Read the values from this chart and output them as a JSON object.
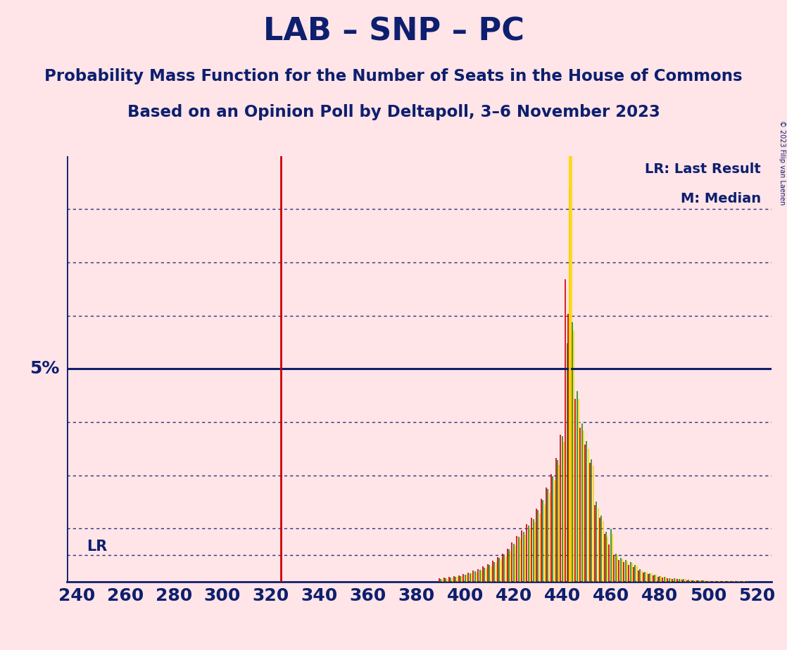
{
  "title": "LAB – SNP – PC",
  "subtitle1": "Probability Mass Function for the Number of Seats in the House of Commons",
  "subtitle2": "Based on an Opinion Poll by Deltapoll, 3–6 November 2023",
  "copyright": "© 2023 Filip van Laenen",
  "background_color": "#FFE4E8",
  "text_color": "#0D1F6E",
  "title_fontsize": 32,
  "subtitle_fontsize": 16.5,
  "lr_label": "LR",
  "lr_value": 324,
  "median_value": 443,
  "five_pct_line": 5.0,
  "xmin": 236,
  "xmax": 526,
  "ymin": 0,
  "ymax": 10.0,
  "dotted_line_levels": [
    1.25,
    2.5,
    3.75,
    6.25,
    7.5,
    8.75
  ],
  "lr_dotted_level": 0.625,
  "xticks": [
    240,
    260,
    280,
    300,
    320,
    340,
    360,
    380,
    400,
    420,
    440,
    460,
    480,
    500,
    520
  ],
  "red_color": "#CC0000",
  "green_color": "#228B22",
  "yellow_color": "#FFD700",
  "pmf_seats": [
    390,
    392,
    394,
    396,
    398,
    400,
    402,
    404,
    406,
    408,
    410,
    412,
    414,
    416,
    418,
    420,
    422,
    424,
    426,
    428,
    430,
    432,
    434,
    436,
    438,
    440,
    442,
    443,
    444,
    446,
    448,
    450,
    452,
    454,
    456,
    458,
    460,
    462,
    464,
    466,
    468,
    470,
    472,
    474,
    476,
    478,
    480,
    482,
    484,
    486,
    488,
    490,
    492,
    494,
    496,
    498,
    500,
    502,
    504,
    506,
    508,
    510,
    512,
    514,
    516,
    518,
    520
  ],
  "pmf_red": [
    0.08,
    0.1,
    0.12,
    0.13,
    0.15,
    0.18,
    0.22,
    0.26,
    0.3,
    0.36,
    0.42,
    0.5,
    0.58,
    0.66,
    0.78,
    0.92,
    1.08,
    1.2,
    1.35,
    1.5,
    1.72,
    1.95,
    2.22,
    2.52,
    2.9,
    3.45,
    7.1,
    6.3,
    5.2,
    4.3,
    3.62,
    3.22,
    2.8,
    1.8,
    1.5,
    1.12,
    0.88,
    0.62,
    0.52,
    0.46,
    0.4,
    0.35,
    0.26,
    0.21,
    0.18,
    0.15,
    0.12,
    0.1,
    0.08,
    0.07,
    0.06,
    0.05,
    0.04,
    0.04,
    0.03,
    0.03,
    0.02,
    0.02,
    0.02,
    0.01,
    0.01,
    0.01,
    0.01,
    0.01,
    0.01,
    0.0,
    0.0
  ],
  "pmf_green": [
    0.07,
    0.08,
    0.1,
    0.12,
    0.14,
    0.17,
    0.2,
    0.24,
    0.28,
    0.33,
    0.39,
    0.47,
    0.56,
    0.64,
    0.76,
    0.9,
    1.06,
    1.17,
    1.32,
    1.47,
    1.68,
    1.91,
    2.18,
    2.48,
    2.86,
    3.42,
    5.6,
    9.2,
    6.1,
    4.48,
    3.72,
    3.3,
    2.88,
    1.88,
    1.56,
    1.18,
    1.24,
    0.66,
    0.56,
    0.51,
    0.46,
    0.4,
    0.29,
    0.23,
    0.2,
    0.17,
    0.14,
    0.11,
    0.09,
    0.08,
    0.07,
    0.06,
    0.05,
    0.04,
    0.04,
    0.03,
    0.02,
    0.02,
    0.02,
    0.01,
    0.01,
    0.01,
    0.01,
    0.01,
    0.01,
    0.0,
    0.0
  ],
  "pmf_yellow": [
    0.06,
    0.07,
    0.09,
    0.11,
    0.13,
    0.16,
    0.19,
    0.22,
    0.26,
    0.31,
    0.36,
    0.44,
    0.53,
    0.6,
    0.71,
    0.84,
    1.0,
    1.1,
    1.25,
    1.4,
    1.6,
    1.82,
    2.08,
    2.38,
    2.74,
    3.28,
    5.4,
    10.0,
    5.9,
    4.3,
    3.56,
    3.12,
    2.72,
    1.72,
    1.42,
    1.06,
    1.12,
    0.62,
    0.53,
    0.48,
    0.44,
    0.38,
    0.27,
    0.22,
    0.19,
    0.16,
    0.13,
    0.11,
    0.09,
    0.08,
    0.07,
    0.06,
    0.05,
    0.04,
    0.04,
    0.03,
    0.02,
    0.02,
    0.02,
    0.01,
    0.01,
    0.01,
    0.01,
    0.01,
    0.0,
    0.0,
    0.0
  ]
}
